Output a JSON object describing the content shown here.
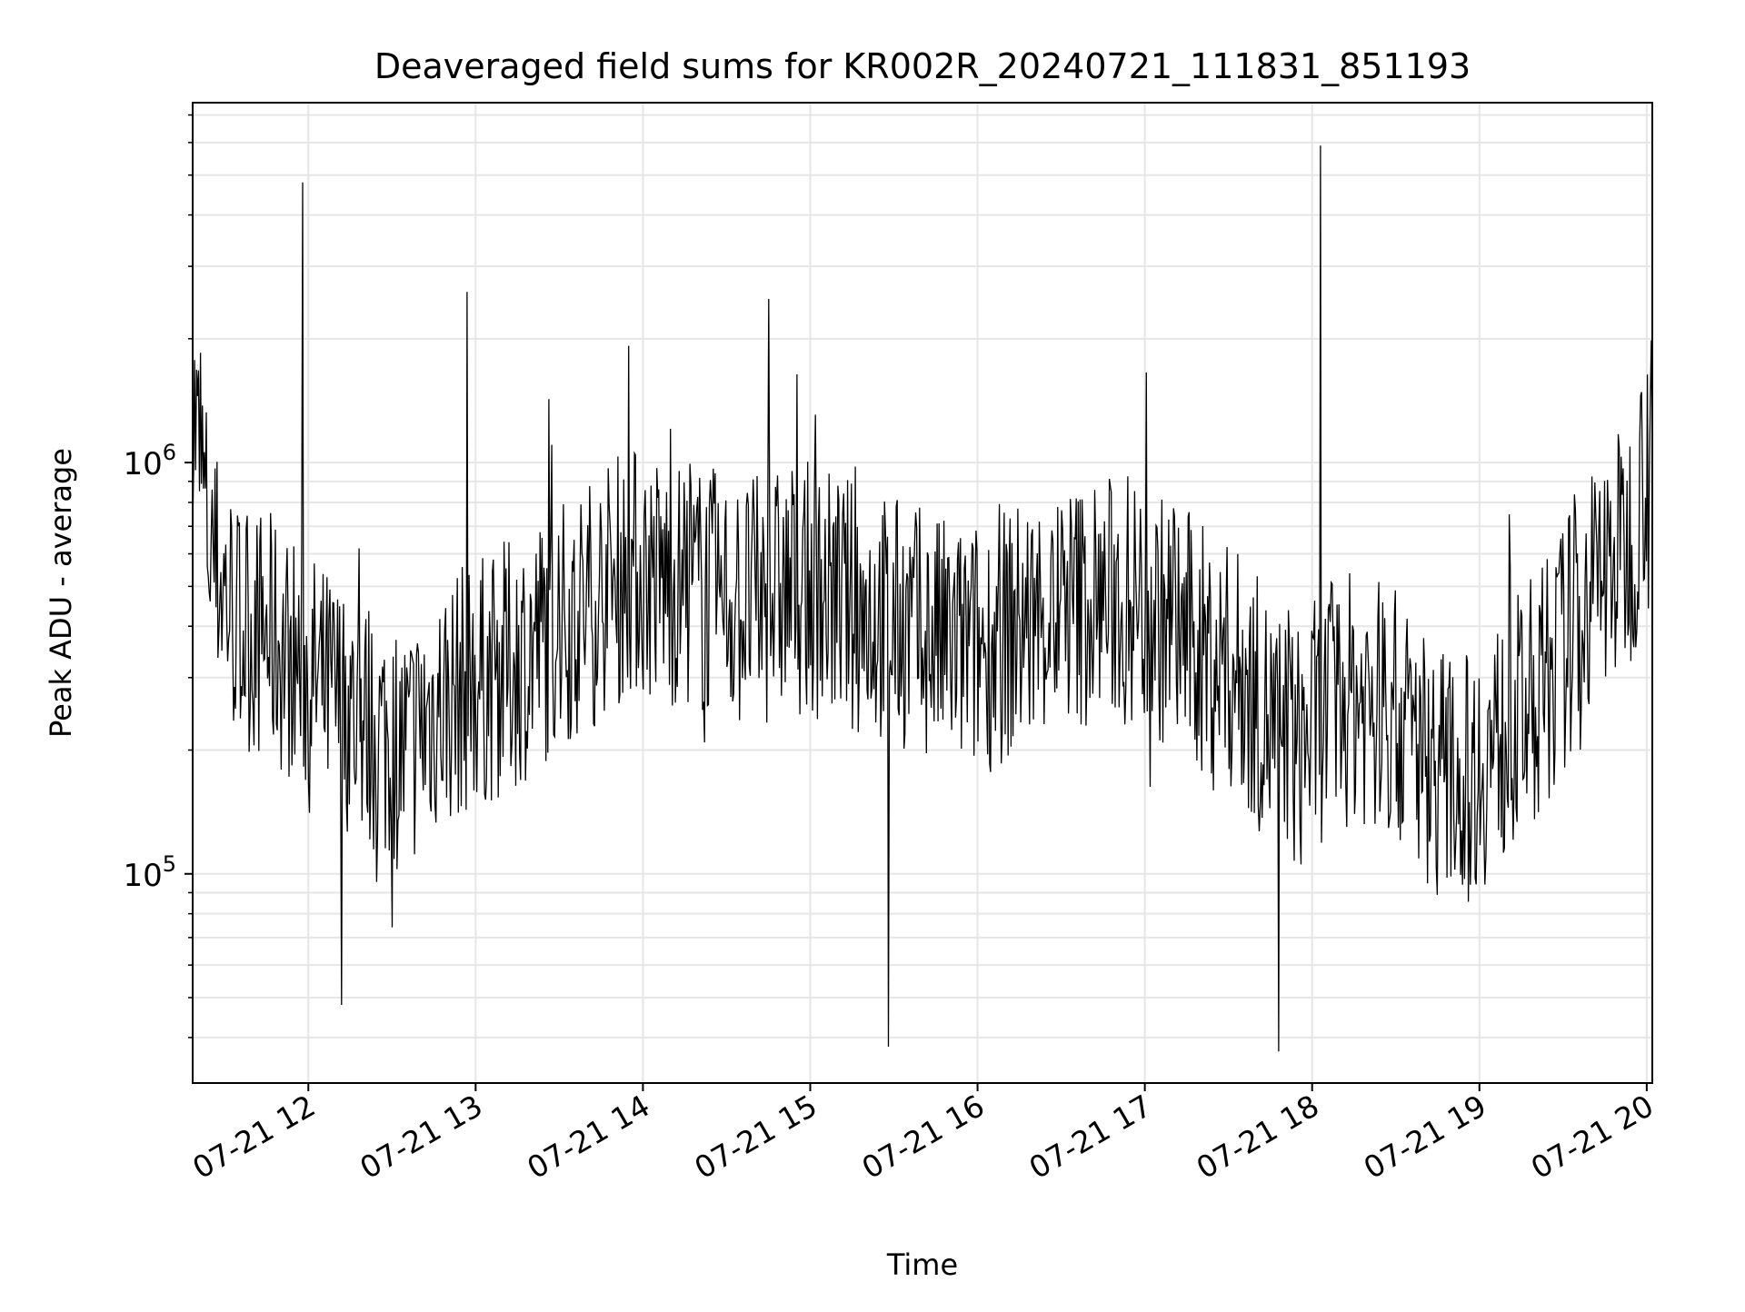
{
  "chart_data": {
    "type": "line",
    "title": "Deaveraged field sums for KR002R_20240721_111831_851193",
    "xlabel": "Time",
    "ylabel": "Peak ADU - average",
    "y_scale": "log",
    "y_tick_base": "10",
    "y_ticks": [
      {
        "exponent": "5",
        "value": 100000
      },
      {
        "exponent": "6",
        "value": 1000000
      }
    ],
    "ylim": [
      31000,
      7500000
    ],
    "xlim": [
      "2024-07-21 11:18:31",
      "2024-07-21 20:02:00"
    ],
    "x_ticks": [
      {
        "label": "07-21 12",
        "time": "2024-07-21 12:00"
      },
      {
        "label": "07-21 13",
        "time": "2024-07-21 13:00"
      },
      {
        "label": "07-21 14",
        "time": "2024-07-21 14:00"
      },
      {
        "label": "07-21 15",
        "time": "2024-07-21 15:00"
      },
      {
        "label": "07-21 16",
        "time": "2024-07-21 16:00"
      },
      {
        "label": "07-21 17",
        "time": "2024-07-21 17:00"
      },
      {
        "label": "07-21 18",
        "time": "2024-07-21 18:00"
      },
      {
        "label": "07-21 19",
        "time": "2024-07-21 19:00"
      },
      {
        "label": "07-21 20",
        "time": "2024-07-21 20:00"
      }
    ],
    "grid": true,
    "line_color": "#000000",
    "grid_color": "#e6e6e6",
    "series": [
      {
        "x": [
          "2024-07-21 11:18",
          "2024-07-21 11:25",
          "2024-07-21 11:35",
          "2024-07-21 11:45",
          "2024-07-21 11:55",
          "2024-07-21 12:05",
          "2024-07-21 12:15",
          "2024-07-21 12:25",
          "2024-07-21 12:35",
          "2024-07-21 12:45",
          "2024-07-21 12:55",
          "2024-07-21 13:05",
          "2024-07-21 13:15",
          "2024-07-21 13:25",
          "2024-07-21 13:35",
          "2024-07-21 13:45",
          "2024-07-21 13:55",
          "2024-07-21 14:05",
          "2024-07-21 14:15",
          "2024-07-21 14:25",
          "2024-07-21 14:35",
          "2024-07-21 14:45",
          "2024-07-21 14:55",
          "2024-07-21 15:05",
          "2024-07-21 15:15",
          "2024-07-21 15:25",
          "2024-07-21 15:35",
          "2024-07-21 15:45",
          "2024-07-21 15:55",
          "2024-07-21 16:05",
          "2024-07-21 16:15",
          "2024-07-21 16:25",
          "2024-07-21 16:35",
          "2024-07-21 16:45",
          "2024-07-21 16:55",
          "2024-07-21 17:05",
          "2024-07-21 17:15",
          "2024-07-21 17:25",
          "2024-07-21 17:35",
          "2024-07-21 17:45",
          "2024-07-21 17:55",
          "2024-07-21 18:05",
          "2024-07-21 18:15",
          "2024-07-21 18:25",
          "2024-07-21 18:35",
          "2024-07-21 18:45",
          "2024-07-21 18:55",
          "2024-07-21 19:05",
          "2024-07-21 19:15",
          "2024-07-21 19:25",
          "2024-07-21 19:35",
          "2024-07-21 19:45",
          "2024-07-21 19:55",
          "2024-07-21 20:01"
        ],
        "y": [
          1500000,
          600000,
          400000,
          380000,
          330000,
          280000,
          250000,
          220000,
          200000,
          250000,
          280000,
          300000,
          330000,
          380000,
          420000,
          480000,
          550000,
          520000,
          500000,
          480000,
          450000,
          470000,
          500000,
          480000,
          450000,
          420000,
          400000,
          370000,
          350000,
          360000,
          400000,
          430000,
          450000,
          460000,
          470000,
          420000,
          380000,
          330000,
          300000,
          230000,
          200000,
          250000,
          270000,
          260000,
          220000,
          180000,
          170000,
          200000,
          240000,
          300000,
          420000,
          550000,
          650000,
          1200000
        ]
      }
    ],
    "spikes": [
      {
        "time": "2024-07-21 11:58",
        "value": 4800000
      },
      {
        "time": "2024-07-21 12:57",
        "value": 2600000
      },
      {
        "time": "2024-07-21 14:45",
        "value": 2500000
      },
      {
        "time": "2024-07-21 18:03",
        "value": 5900000
      },
      {
        "time": "2024-07-21 15:28",
        "value": 38000
      },
      {
        "time": "2024-07-21 17:48",
        "value": 37000
      },
      {
        "time": "2024-07-21 12:12",
        "value": 48000
      }
    ]
  }
}
